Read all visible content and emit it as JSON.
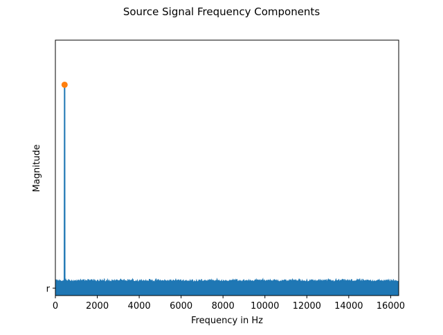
{
  "chart_data": {
    "type": "line",
    "title": "Source Signal Frequency Components",
    "xlabel": "Frequency in Hz",
    "ylabel": "Magnitude",
    "xlim": [
      0,
      16384
    ],
    "ylim": [
      -0.03,
      1.0
    ],
    "xticks": [
      0,
      2000,
      4000,
      6000,
      8000,
      10000,
      12000,
      14000,
      16000
    ],
    "xtick_labels": [
      "0",
      "2000",
      "4000",
      "6000",
      "8000",
      "10000",
      "12000",
      "14000",
      "16000"
    ],
    "yticks": [
      0
    ],
    "ytick_labels": [
      "r"
    ],
    "grid": false,
    "series": [
      {
        "kind": "spectrum",
        "color": "#1f77b4",
        "noise_floor": 0.025,
        "noise_floor_range": [
          0.015,
          0.04
        ],
        "peak": {
          "x": 440,
          "y": 0.82
        }
      },
      {
        "kind": "marker",
        "color": "#ff7f0e",
        "points": [
          {
            "x": 440,
            "y": 0.82
          }
        ]
      }
    ]
  }
}
